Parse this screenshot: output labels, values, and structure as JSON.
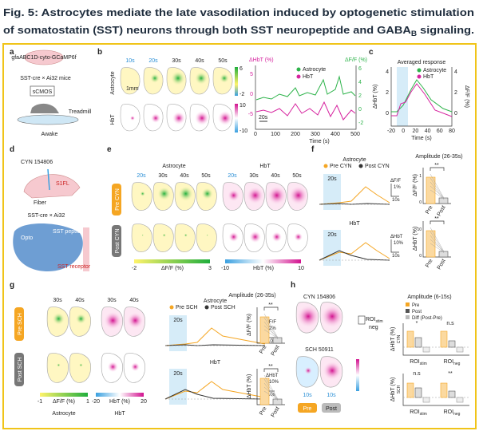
{
  "title": {
    "line1": "Fig. 5: Astrocytes mediate the late vasodilation induced by optogenetic stimulation",
    "line2": "of somatostatin (SST) neurons through both SST neuropeptide and GABA",
    "sub": "B",
    "tail": " signaling."
  },
  "a": {
    "label": "a",
    "construct": "gfaABC1D-cyto-GCaMP6f",
    "mice": "SST-cre × Ai32 mice",
    "camera": "sCMOS",
    "treadmill": "Treadmill",
    "state": "Awake"
  },
  "b": {
    "label": "b",
    "times": [
      "10s",
      "20s",
      "30s",
      "40s",
      "50s"
    ],
    "rows": [
      "Astrocyte",
      "HbT"
    ],
    "scale": "1mm",
    "cb1": [
      "6",
      "-2"
    ],
    "cb2": [
      "10",
      "-10"
    ],
    "y_left": "ΔHbT (%)",
    "y_right": "ΔF/F (%)",
    "legend": [
      "Astrocyte",
      "HbT"
    ],
    "xticks": [
      "0",
      "100",
      "200",
      "300",
      "400",
      "500"
    ],
    "xlabel": "Time (s)",
    "bar": "20s",
    "lticks": [
      "5",
      "0",
      "-5"
    ],
    "rticks": [
      "6",
      "4",
      "2",
      "0",
      "-2"
    ]
  },
  "c": {
    "label": "c",
    "title": "Averaged response",
    "legend": [
      "Astrocyte",
      "HbT"
    ],
    "ylabel": "ΔHbT (%)",
    "y2label": "ΔF/F (%)",
    "xticks": [
      "-20",
      "0",
      "20",
      "40",
      "60",
      "80"
    ],
    "xlabel": "Time (s)",
    "lticks": [
      "4",
      "2",
      "0"
    ],
    "rticks": [
      "4",
      "2",
      "0"
    ]
  },
  "d": {
    "label": "d",
    "drug": "CYN 154806",
    "region": "S1FL",
    "fiber": "Fiber",
    "mice": "SST-cre × Ai32",
    "opto": "Opto",
    "peptide": "SST peptide",
    "receptor": "SST receptor"
  },
  "e": {
    "label": "e",
    "groups": [
      "Astrocyte",
      "HbT"
    ],
    "times": [
      "20s",
      "30s",
      "40s",
      "50s",
      "20s",
      "30s",
      "40s",
      "50s"
    ],
    "rows": [
      "Pre CYN",
      "Post CYN"
    ],
    "cb1": [
      "-2",
      "ΔF/F (%)",
      "3"
    ],
    "cb2": [
      "-10",
      "HbT (%)",
      "10"
    ]
  },
  "f": {
    "label": "f",
    "top": "Astrocyte",
    "legend": [
      "Pre CYN",
      "Post CYN"
    ],
    "stim1": "20s",
    "scale1": [
      "1%",
      "ΔF/F",
      "10s"
    ],
    "bottom": "HbT",
    "stim2": "20s",
    "scale2": [
      "10%",
      "ΔHbT",
      "10s"
    ],
    "amp_title": "Amplitude (26-35s)",
    "amp_y": [
      "ΔF/F (%)",
      "ΔHbT (%)"
    ],
    "sig": [
      "**",
      "**"
    ],
    "amp_x": [
      "Pre",
      "Post",
      "Pre",
      "Post"
    ],
    "ticks1": [
      "1",
      "0"
    ],
    "ticks2": [
      "10",
      "0"
    ]
  },
  "g": {
    "label": "g",
    "times": [
      "30s",
      "40s",
      "30s",
      "40s"
    ],
    "rows": [
      "Pre SCH",
      "Post SCH"
    ],
    "cb1": [
      "-1",
      "ΔF/F (%)",
      "1"
    ],
    "cb2": [
      "-20",
      "HbT (%)",
      "20"
    ],
    "groups": [
      "Astrocyte",
      "HbT"
    ],
    "top": "Astrocyte",
    "legend": [
      "Pre SCH",
      "Post SCH"
    ],
    "stim1": "20s",
    "scale1": [
      "2%",
      "ΔF/F",
      "10s"
    ],
    "bottom": "HbT",
    "stim2": "20s",
    "scale2": [
      "10%",
      "ΔHbT",
      "10s"
    ],
    "amp_title": "Amplitude (26-35s)",
    "amp_y": [
      "ΔF/F (%)",
      "ΔHbT (%)"
    ],
    "sig": [
      "**",
      "**"
    ],
    "amp_x": [
      "Pre",
      "Post",
      "Pre",
      "Post"
    ]
  },
  "h": {
    "label": "h",
    "drugs": [
      "CYN 154806",
      "SCH 50911"
    ],
    "roi": "ROI",
    "roi_sub": [
      "stim",
      "neg"
    ],
    "times": [
      "10s",
      "10s"
    ],
    "conds": [
      "Pre",
      "Post"
    ],
    "amp_title": "Amplitude (6-15s)",
    "legend": [
      "Pre",
      "Post",
      "Diff (Post-Pre)"
    ],
    "amp_y": [
      "ΔHbT (%)",
      "ΔHbT (%)"
    ],
    "amp_y_sub": [
      "CYN",
      "SCH"
    ],
    "sig": [
      "*",
      "n.s",
      "n.s",
      "**"
    ],
    "xcat": [
      "ROI",
      "ROI",
      "ROI",
      "ROI"
    ],
    "xcat_sub": [
      "stim",
      "neg",
      "stim",
      "neg"
    ]
  }
}
